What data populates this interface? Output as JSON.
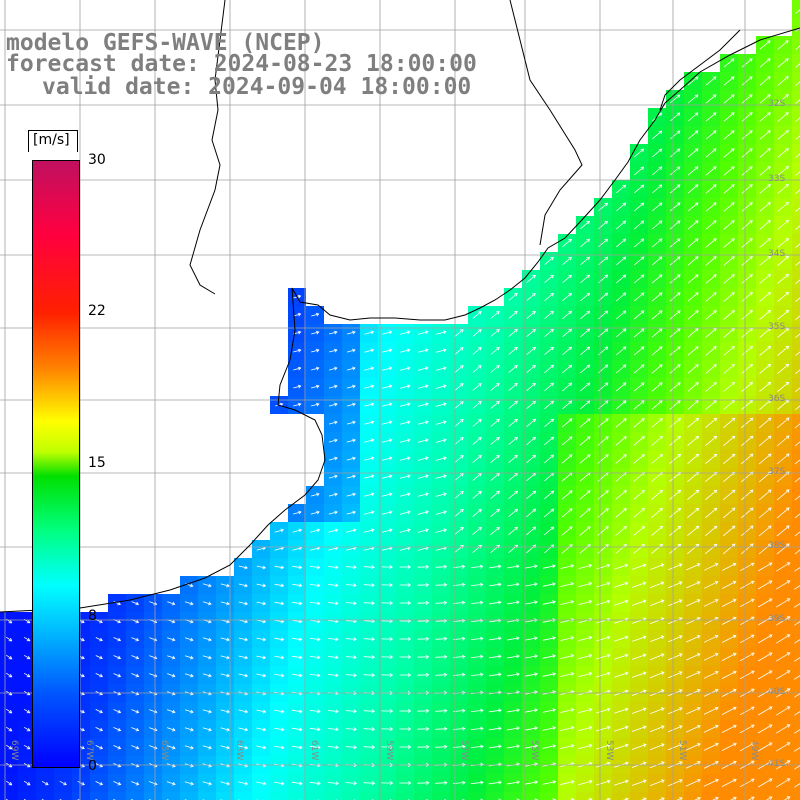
{
  "title": {
    "line1": "modelo GEFS-WAVE (NCEP)",
    "line2": "forecast date: 2024-08-23 18:00:00",
    "line3": "valid date: 2024-09-04 18:00:00"
  },
  "colorbar": {
    "unit": "[m/s]",
    "min": 0,
    "max": 30,
    "ticks": [
      "30",
      "22",
      "15",
      "8",
      "0"
    ],
    "colors": [
      "#0000ff",
      "#0055ff",
      "#00bfff",
      "#00ffff",
      "#00ff80",
      "#00e000",
      "#ffff00",
      "#ff8000",
      "#ff2000",
      "#ff0040",
      "#c01060"
    ]
  },
  "map": {
    "lon_labels": [
      "69W",
      "67W",
      "65W",
      "63W",
      "61W",
      "59W",
      "57W",
      "55W",
      "53W",
      "51W",
      "49W"
    ],
    "lat_labels": [
      "32S",
      "33S",
      "34S",
      "35S",
      "36S",
      "37S",
      "38S",
      "39S",
      "40S",
      "41S"
    ],
    "extent": {
      "lon_min": -70,
      "lon_max": -48.5,
      "lat_min": -41.5,
      "lat_max": -30.5
    },
    "land_color": "#ffffff",
    "coast_color": "#000000",
    "grid_color": "#a0a0a0",
    "arrow_color": "#ffffff",
    "wind_direction": "from west-southwest to northeast"
  }
}
